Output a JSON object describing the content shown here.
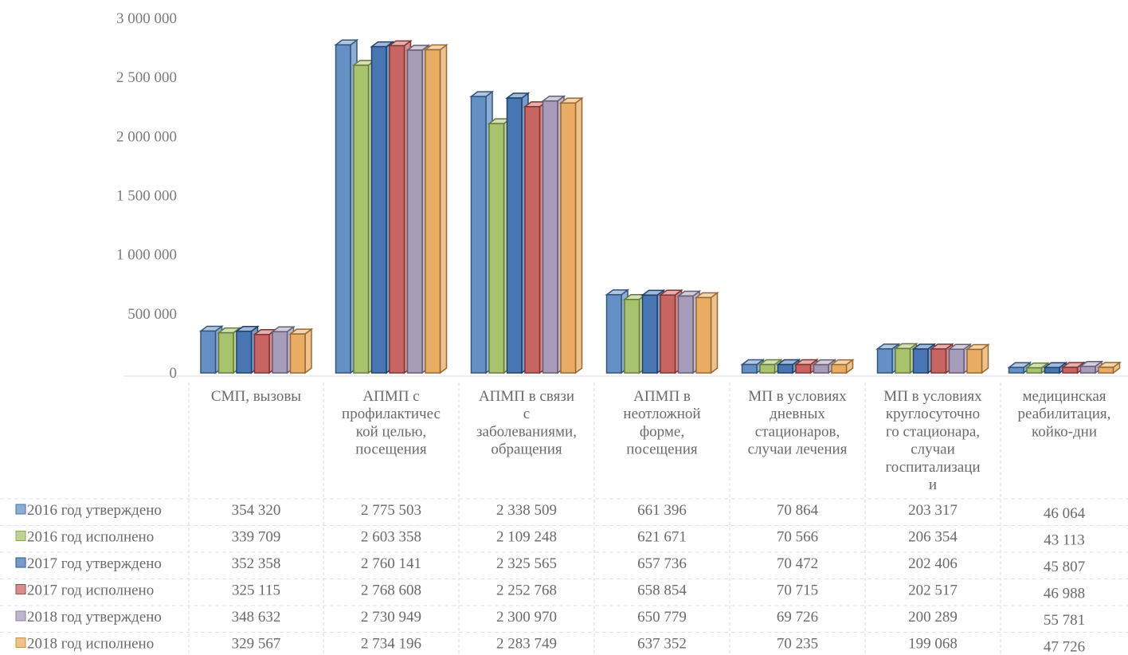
{
  "chart_data": {
    "type": "bar",
    "ylim": [
      0,
      3000000
    ],
    "yticks": [
      {
        "value": 0,
        "label": "0"
      },
      {
        "value": 500000,
        "label": "500 000"
      },
      {
        "value": 1000000,
        "label": "1 000 000"
      },
      {
        "value": 1500000,
        "label": "1 500 000"
      },
      {
        "value": 2000000,
        "label": "2 000 000"
      },
      {
        "value": 2500000,
        "label": "2 500 000"
      },
      {
        "value": 3000000,
        "label": "3 000 000"
      }
    ],
    "categories": [
      {
        "label": "СМП, вызовы",
        "lines": [
          "СМП, вызовы"
        ]
      },
      {
        "label": "АПМП с профилактической целью, посещения",
        "lines": [
          "АПМП с",
          "профилактичес",
          "кой целью,",
          "посещения"
        ]
      },
      {
        "label": "АПМП в связи с заболеваниями, обращения",
        "lines": [
          "АПМП в связи",
          "с",
          "заболеваниями,",
          "обращения"
        ]
      },
      {
        "label": "АПМП в неотложной форме, посещения",
        "lines": [
          "АПМП в",
          "неотложной",
          "форме,",
          "посещения"
        ]
      },
      {
        "label": "МП в условиях дневных стационаров, случаи лечения",
        "lines": [
          "МП в условиях",
          "дневных",
          "стационаров,",
          "случаи лечения"
        ]
      },
      {
        "label": "МП в условиях круглосуточного стационара, случаи госпитализации",
        "lines": [
          "МП в условиях",
          "круглосуточно",
          "го стационара,",
          "случаи",
          "госпитализаци",
          "и"
        ]
      },
      {
        "label": "медицинская реабилитация, койко-дни",
        "lines": [
          "медицинская",
          "реабилитация,",
          "койко-дни"
        ]
      }
    ],
    "series": [
      {
        "name": "2016 год утверждено",
        "color": "#4f81bd",
        "values": [
          354320,
          2775503,
          2338509,
          661396,
          70864,
          203317,
          46064
        ],
        "labels": [
          "354 320",
          "2 775 503",
          "2 338 509",
          "661 396",
          "70 864",
          "203 317",
          "46 064"
        ]
      },
      {
        "name": "2016 год исполнено",
        "color": "#9bbb59",
        "values": [
          339709,
          2603358,
          2109248,
          621671,
          70566,
          206354,
          43113
        ],
        "labels": [
          "339 709",
          "2 603 358",
          "2 109 248",
          "621 671",
          "70 566",
          "206 354",
          "43 113"
        ]
      },
      {
        "name": "2017 год утверждено",
        "color": "#2f63a8",
        "values": [
          352358,
          2760141,
          2325565,
          657736,
          70472,
          202406,
          45807
        ],
        "labels": [
          "352 358",
          "2 760 141",
          "2 325 565",
          "657 736",
          "70 472",
          "202 406",
          "45 807"
        ]
      },
      {
        "name": "2017 год исполнено",
        "color": "#c0504d",
        "values": [
          325115,
          2768608,
          2252768,
          658854,
          70715,
          202517,
          46988
        ],
        "labels": [
          "325 115",
          "2 768 608",
          "2 252 768",
          "658 854",
          "70 715",
          "202 517",
          "46 988"
        ]
      },
      {
        "name": "2018 год утверждено",
        "color": "#9b8fb0",
        "values": [
          348632,
          2730949,
          2300970,
          650779,
          69726,
          200289,
          55781
        ],
        "labels": [
          "348 632",
          "2 730 949",
          "2 300 970",
          "650 779",
          "69 726",
          "200 289",
          "55 781"
        ]
      },
      {
        "name": "2018 год исполнено",
        "color": "#e6a14e",
        "values": [
          329567,
          2734196,
          2283749,
          637352,
          70235,
          199068,
          47726
        ],
        "labels": [
          "329 567",
          "2 734 196",
          "2 283 749",
          "637 352",
          "70 235",
          "199 068",
          "47 726"
        ]
      }
    ]
  }
}
